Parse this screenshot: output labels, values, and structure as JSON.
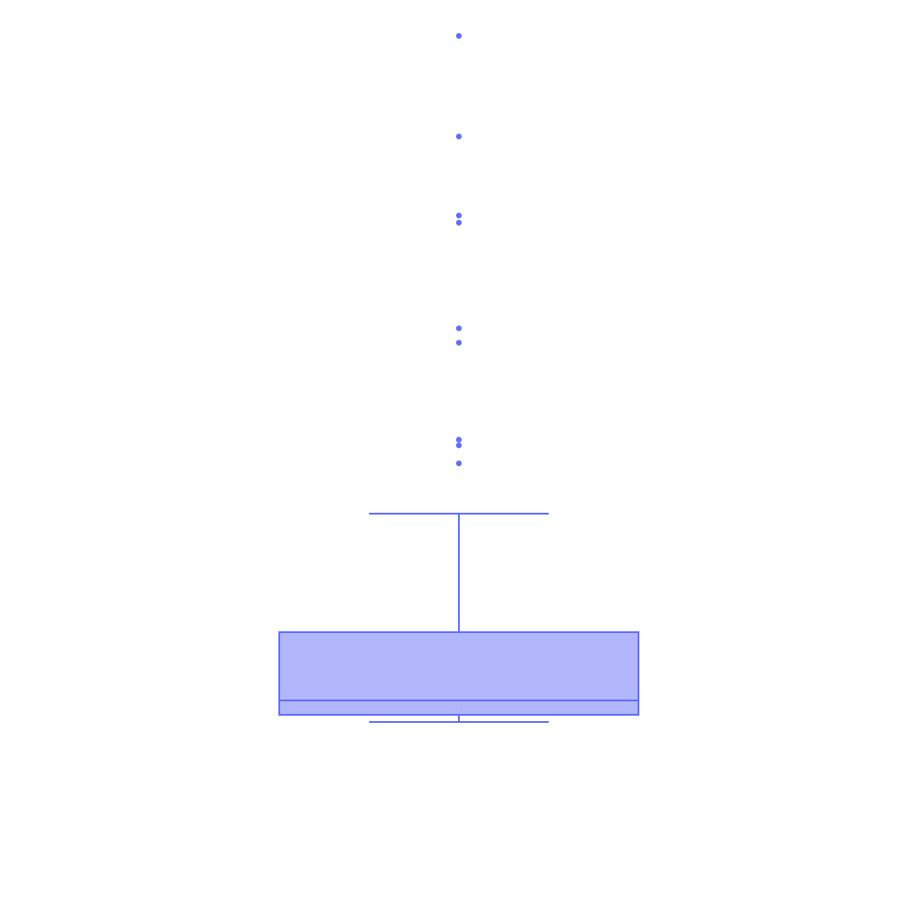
{
  "chart_data": {
    "type": "box",
    "orientation": "vertical",
    "title": "",
    "xlabel": "",
    "ylabel": "",
    "ylim": [
      0,
      100
    ],
    "grid": false,
    "legend": "none",
    "colors": {
      "stroke": "#636efa",
      "fill": "#b1b6fa"
    },
    "series": [
      {
        "name": "",
        "whisker_low": 12,
        "q1": 13,
        "median": 15,
        "q3": 24.5,
        "whisker_high": 41,
        "outliers": [
          48,
          50.5,
          51.3,
          64.8,
          66.8,
          81.5,
          82.5,
          93.5,
          107.5
        ]
      }
    ]
  }
}
